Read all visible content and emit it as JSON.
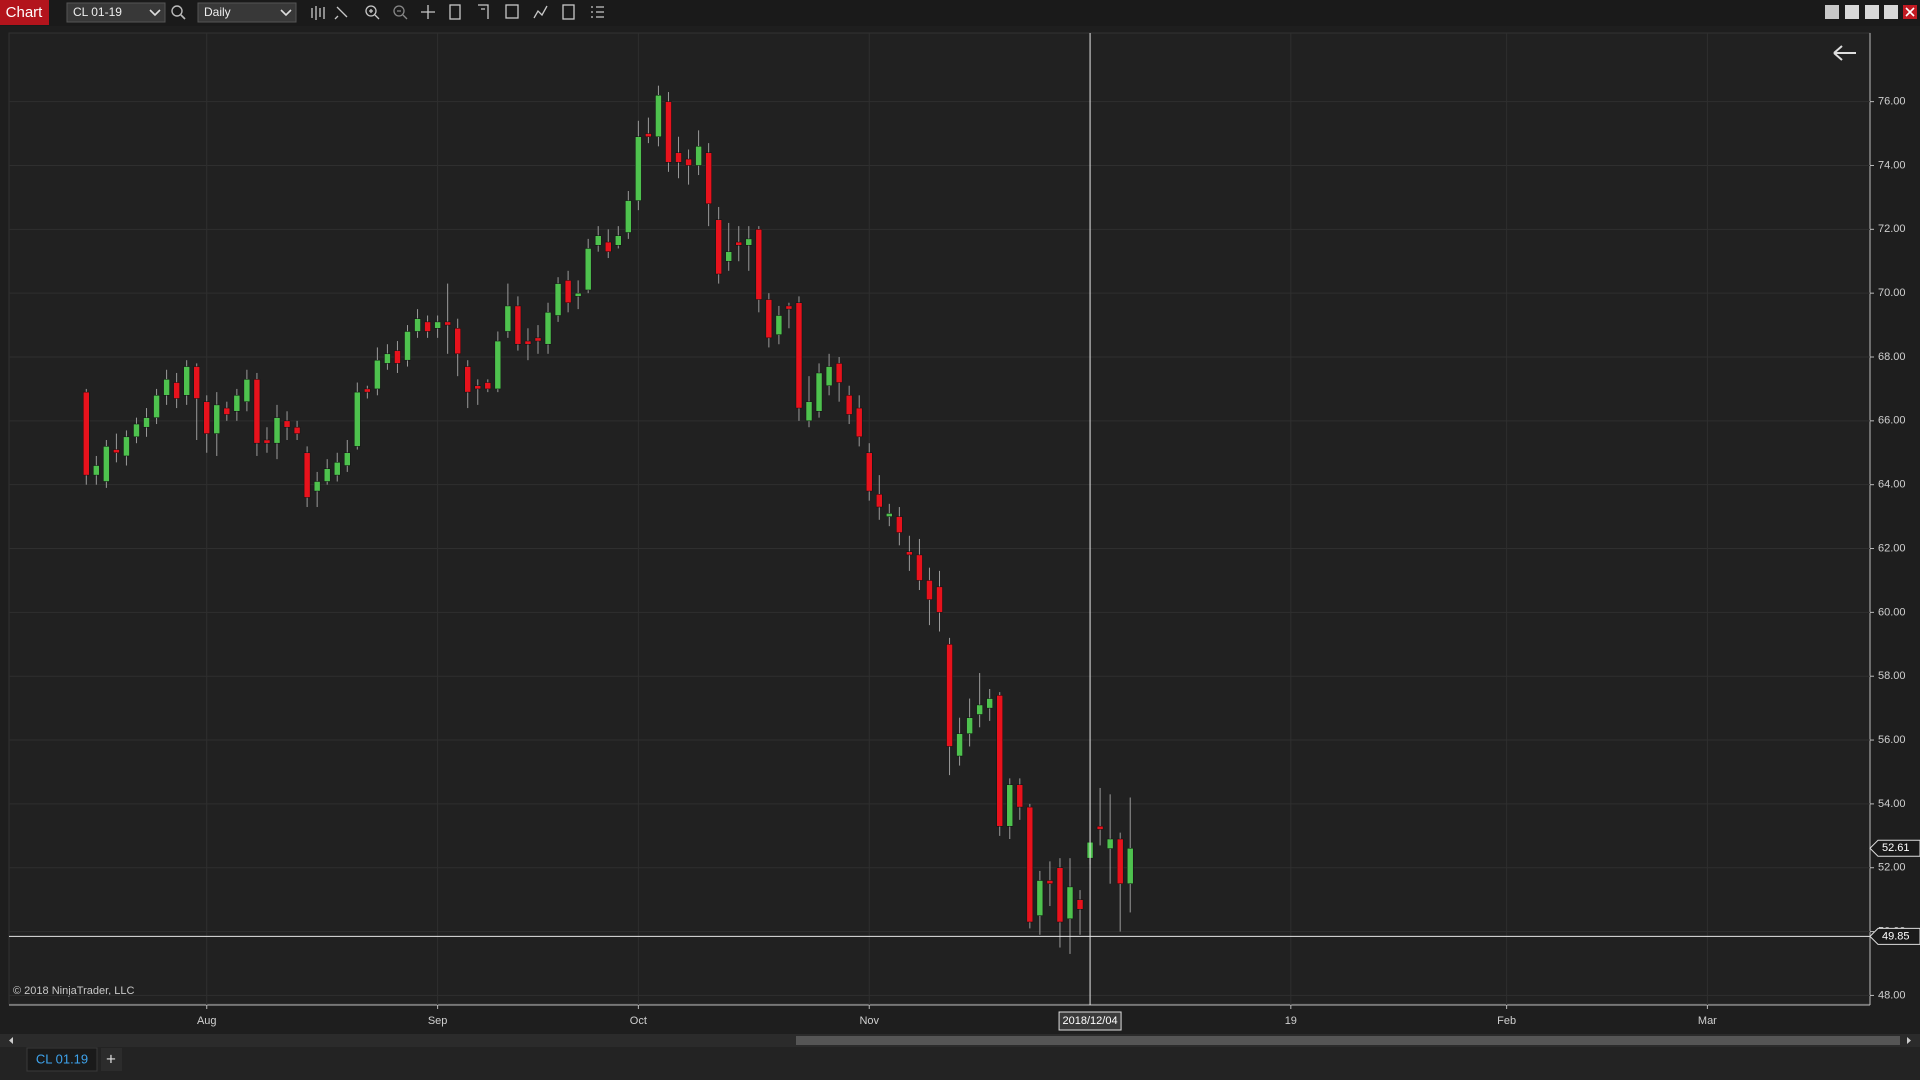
{
  "toolbar": {
    "tab": "Chart",
    "instrument": "CL 01-19",
    "interval": "Daily"
  },
  "chart_data": {
    "type": "candlestick",
    "x": [
      0,
      1,
      2,
      3,
      4,
      5,
      6,
      7,
      8,
      9,
      10,
      11,
      12,
      13,
      14,
      15,
      16,
      17,
      18,
      19,
      20,
      21,
      22,
      23,
      24,
      25,
      26,
      27,
      28,
      29,
      30,
      31,
      32,
      33,
      34,
      35,
      36,
      37,
      38,
      39,
      40,
      41,
      42,
      43,
      44,
      45,
      46,
      47,
      48,
      49,
      50,
      51,
      52,
      53,
      54,
      55,
      56,
      57,
      58,
      59,
      60,
      61,
      62,
      63,
      64,
      65,
      66,
      67,
      68,
      69,
      70,
      71,
      72,
      73,
      74,
      75,
      76,
      77,
      78,
      79,
      80,
      81,
      82,
      83,
      84,
      85,
      86,
      87,
      88,
      89,
      90,
      91,
      92,
      93,
      94,
      95,
      96,
      97,
      98,
      99,
      100,
      101,
      102,
      103,
      104
    ],
    "open": [
      66.9,
      64.3,
      64.1,
      65.1,
      64.9,
      65.5,
      65.8,
      66.1,
      66.8,
      67.2,
      66.8,
      67.7,
      66.6,
      65.6,
      66.4,
      66.3,
      66.6,
      67.3,
      65.4,
      65.3,
      66.0,
      65.8,
      65.0,
      63.8,
      64.1,
      64.3,
      64.6,
      65.2,
      67.0,
      67.0,
      67.8,
      68.2,
      67.9,
      68.8,
      69.1,
      68.9,
      69.1,
      68.9,
      67.7,
      67.1,
      67.2,
      67.0,
      68.8,
      69.6,
      68.5,
      68.6,
      68.4,
      69.3,
      70.4,
      69.9,
      70.1,
      71.5,
      71.6,
      71.5,
      71.9,
      72.9,
      75.0,
      74.9,
      76.0,
      74.4,
      74.2,
      74.0,
      74.4,
      72.3,
      71.0,
      71.6,
      71.5,
      72.0,
      69.8,
      68.7,
      69.6,
      69.7,
      66.0,
      66.3,
      67.1,
      67.8,
      66.8,
      66.4,
      65.0,
      63.7,
      63.0,
      63.0,
      61.9,
      61.8,
      61.0,
      60.8,
      59.0,
      55.5,
      56.2,
      56.8,
      57.0,
      57.4,
      53.3,
      54.6,
      53.9,
      50.5,
      51.6,
      52.0,
      50.4,
      51.0,
      52.3,
      53.3,
      52.6,
      52.9,
      51.5
    ],
    "high": [
      67.0,
      64.9,
      65.4,
      65.6,
      65.7,
      66.1,
      66.4,
      67.0,
      67.6,
      67.5,
      67.9,
      67.8,
      66.8,
      66.9,
      66.6,
      67.0,
      67.6,
      67.5,
      65.8,
      66.5,
      66.3,
      66.0,
      65.2,
      64.4,
      64.8,
      65.0,
      65.4,
      67.2,
      67.1,
      68.3,
      68.4,
      68.5,
      69.0,
      69.5,
      69.3,
      69.3,
      70.3,
      69.2,
      67.9,
      67.3,
      67.3,
      68.8,
      70.3,
      69.9,
      68.9,
      69.0,
      69.7,
      70.5,
      70.7,
      70.4,
      71.7,
      72.1,
      72.0,
      72.1,
      73.2,
      75.4,
      75.5,
      76.5,
      76.3,
      74.9,
      74.5,
      75.1,
      74.7,
      72.7,
      72.2,
      72.1,
      72.1,
      72.1,
      70.0,
      69.6,
      69.7,
      69.9,
      67.4,
      67.8,
      68.1,
      68.0,
      67.1,
      66.8,
      65.3,
      64.3,
      63.4,
      63.3,
      62.4,
      62.3,
      61.4,
      61.3,
      59.2,
      56.7,
      57.3,
      58.1,
      57.6,
      57.5,
      54.8,
      54.8,
      54.0,
      51.9,
      52.2,
      52.3,
      52.3,
      51.3,
      53.8,
      54.5,
      54.3,
      53.1,
      54.2
    ],
    "low": [
      64.0,
      64.0,
      63.9,
      64.7,
      64.6,
      65.3,
      65.5,
      65.9,
      66.5,
      66.4,
      66.5,
      65.4,
      65.0,
      64.9,
      66.0,
      66.0,
      66.3,
      64.9,
      65.0,
      64.8,
      65.4,
      65.4,
      63.3,
      63.3,
      64.0,
      64.1,
      64.4,
      65.1,
      66.7,
      66.8,
      67.6,
      67.5,
      67.7,
      68.6,
      68.6,
      68.6,
      68.1,
      67.4,
      66.4,
      66.5,
      66.9,
      66.9,
      68.6,
      68.2,
      67.9,
      68.1,
      68.1,
      69.1,
      69.4,
      69.5,
      70.0,
      71.3,
      71.1,
      71.4,
      71.7,
      72.6,
      74.7,
      74.6,
      73.8,
      73.6,
      73.4,
      73.7,
      72.1,
      70.3,
      70.7,
      71.0,
      70.7,
      69.4,
      68.3,
      68.4,
      68.9,
      66.0,
      65.8,
      66.1,
      66.8,
      66.6,
      65.9,
      65.2,
      63.5,
      62.9,
      62.7,
      62.1,
      61.3,
      60.7,
      59.6,
      59.4,
      54.9,
      55.2,
      55.8,
      56.4,
      56.6,
      53.0,
      52.9,
      53.5,
      50.1,
      49.9,
      50.8,
      49.5,
      49.3,
      49.9,
      52.1,
      52.7,
      51.5,
      50.0,
      50.6
    ],
    "close": [
      64.3,
      64.6,
      65.2,
      65.0,
      65.5,
      65.9,
      66.1,
      66.8,
      67.3,
      66.7,
      67.7,
      66.7,
      65.6,
      66.5,
      66.2,
      66.8,
      67.3,
      65.3,
      65.3,
      66.1,
      65.8,
      65.6,
      63.6,
      64.1,
      64.5,
      64.7,
      65.0,
      66.9,
      66.9,
      67.9,
      68.1,
      67.8,
      68.8,
      69.2,
      68.8,
      69.1,
      69.0,
      68.1,
      66.9,
      67.0,
      67.0,
      68.5,
      69.6,
      68.4,
      68.4,
      68.5,
      69.4,
      70.3,
      69.7,
      70.0,
      71.4,
      71.8,
      71.3,
      71.8,
      72.9,
      74.9,
      74.9,
      76.2,
      74.1,
      74.1,
      74.0,
      74.6,
      72.8,
      70.6,
      71.3,
      71.5,
      71.7,
      69.8,
      68.6,
      69.3,
      69.5,
      66.4,
      66.6,
      67.5,
      67.7,
      67.2,
      66.2,
      65.5,
      63.8,
      63.3,
      63.1,
      62.5,
      61.8,
      61.0,
      60.4,
      60.0,
      55.8,
      56.2,
      56.7,
      57.1,
      57.3,
      53.3,
      54.6,
      53.9,
      50.3,
      51.6,
      51.5,
      50.3,
      51.4,
      50.7,
      52.8,
      53.2,
      52.9,
      51.5,
      52.61
    ],
    "up_color": "#4ec24e",
    "down_color": "#e8121c",
    "xlim": [
      -7.7,
      177.7
    ],
    "xticks": [
      {
        "value": 12,
        "label": "Aug"
      },
      {
        "value": 35,
        "label": "Sep"
      },
      {
        "value": 55,
        "label": "Oct"
      },
      {
        "value": 78,
        "label": "Nov"
      },
      {
        "value": 120,
        "label": "19"
      },
      {
        "value": 141.5,
        "label": "Feb"
      },
      {
        "value": 161.5,
        "label": "Mar"
      }
    ],
    "ylim": [
      47.7,
      78.15
    ],
    "yticks": [
      {
        "value": 48,
        "label": "48.00"
      },
      {
        "value": 50,
        "label": "50.00"
      },
      {
        "value": 52,
        "label": "52.00"
      },
      {
        "value": 54,
        "label": "54.00"
      },
      {
        "value": 56,
        "label": "56.00"
      },
      {
        "value": 58,
        "label": "58.00"
      },
      {
        "value": 60,
        "label": "60.00"
      },
      {
        "value": 62,
        "label": "62.00"
      },
      {
        "value": 64,
        "label": "64.00"
      },
      {
        "value": 66,
        "label": "66.00"
      },
      {
        "value": 68,
        "label": "68.00"
      },
      {
        "value": 70,
        "label": "70.00"
      },
      {
        "value": 72,
        "label": "72.00"
      },
      {
        "value": 74,
        "label": "74.00"
      },
      {
        "value": 76,
        "label": "76.00"
      }
    ],
    "grid": true,
    "crosshair": {
      "x": 100,
      "x_label": "2018/12/04",
      "y": 49.85
    },
    "annotation": "© 2018 NinjaTrader, LLC"
  },
  "footer": {
    "tab": "CL 01.19",
    "add": "+"
  }
}
